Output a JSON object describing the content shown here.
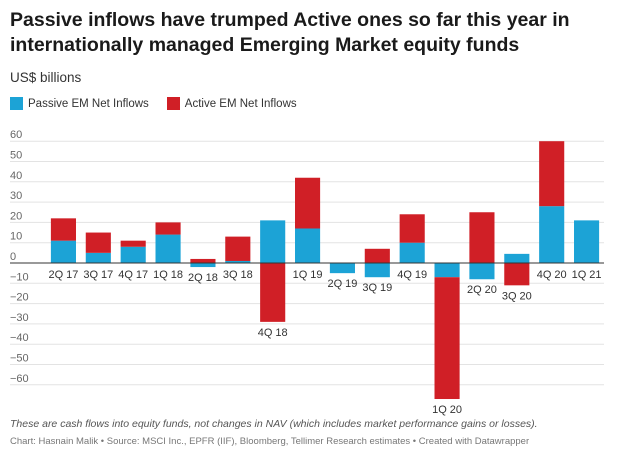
{
  "chart_data": {
    "type": "bar",
    "stacked": true,
    "title": "Passive inflows have trumped Active ones so far this year in internationally managed Emerging Market equity funds",
    "subtitle": "US$ billions",
    "categories": [
      "2Q 17",
      "3Q 17",
      "4Q 17",
      "1Q 18",
      "2Q 18",
      "3Q 18",
      "4Q 18",
      "1Q 19",
      "2Q 19",
      "3Q 19",
      "4Q 19",
      "1Q 20",
      "2Q 20",
      "3Q 20",
      "4Q 20",
      "1Q 21"
    ],
    "series": [
      {
        "name": "Passive EM Net Inflows",
        "color": "#1ca3d6",
        "values": [
          11,
          5,
          8,
          14,
          -2,
          1,
          21,
          17,
          -5,
          -7,
          10,
          -7,
          -8,
          4.5,
          28,
          21
        ]
      },
      {
        "name": "Active EM Net Inflows",
        "color": "#d01f26",
        "values": [
          11,
          10,
          3,
          6,
          2,
          12,
          -29,
          25,
          0,
          7,
          14,
          -60,
          25,
          -11,
          32,
          0
        ]
      }
    ],
    "ylim": [
      -68,
      62
    ],
    "yticks": [
      60,
      50,
      40,
      30,
      20,
      10,
      0,
      -10,
      -20,
      -30,
      -40,
      -50,
      -60
    ],
    "grid": true,
    "legend": "top-left",
    "notes": "These are cash flows into equity funds, not changes in NAV (which includes market performance gains or losses).",
    "byline": "Chart: Hasnain Malik • Source: MSCI Inc., EPFR (IIF), Bloomberg, Tellimer Research estimates • Created with Datawrapper"
  }
}
